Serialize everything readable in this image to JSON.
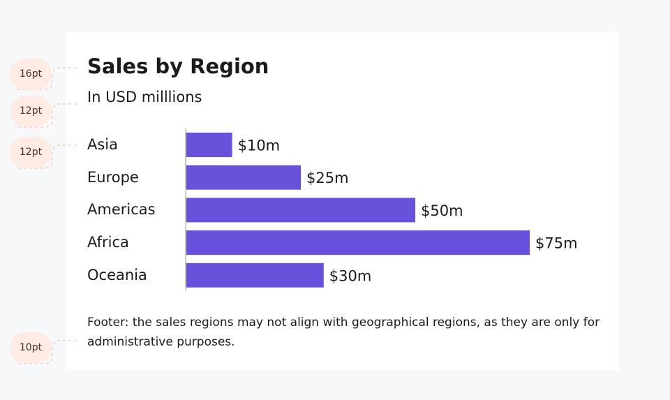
{
  "annotations": [
    "16pt",
    "12pt",
    "12pt",
    "10pt"
  ],
  "chart_data": {
    "type": "bar",
    "orientation": "horizontal",
    "title": "Sales by Region",
    "subtitle": "In USD milllions",
    "categories": [
      "Asia",
      "Europe",
      "Americas",
      "Africa",
      "Oceania"
    ],
    "values": [
      10,
      25,
      50,
      75,
      30
    ],
    "value_labels": [
      "$10m",
      "$25m",
      "$50m",
      "$75m",
      "$30m"
    ],
    "xlim": [
      0,
      75
    ],
    "bar_color": "#6851db",
    "footer": "Footer: the sales regions may not align with geographical regions, as they are only for administrative purposes."
  }
}
